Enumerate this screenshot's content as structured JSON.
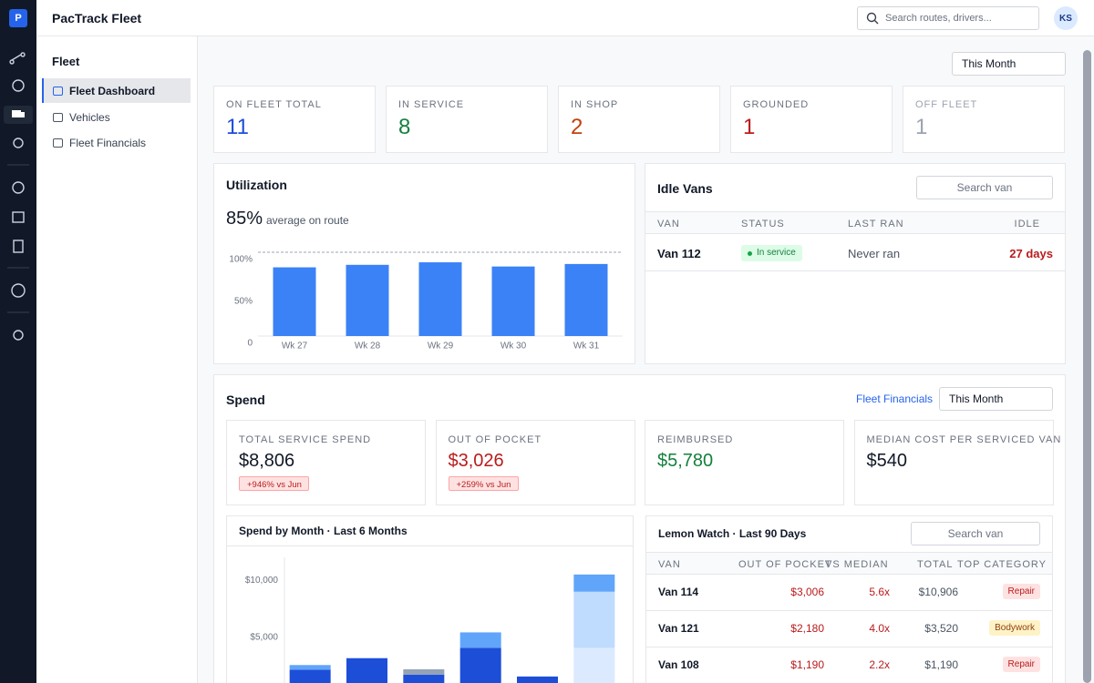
{
  "app": {
    "logo": "P",
    "title": "PacTrack Fleet",
    "search_placeholder": "Search routes, drivers...",
    "avatar": "KS"
  },
  "sidebar": {
    "section": "Fleet",
    "items": [
      "Fleet Dashboard",
      "Vehicles",
      "Fleet Financials"
    ]
  },
  "period": "This Month",
  "stats": [
    {
      "label": "ON FLEET TOTAL",
      "value": 11,
      "color": "#1d4ed8"
    },
    {
      "label": "IN SERVICE",
      "value": 8,
      "color": "#15803d"
    },
    {
      "label": "IN SHOP",
      "value": 2,
      "color": "#c2410c"
    },
    {
      "label": "GROUNDED",
      "value": 1,
      "color": "#b91c1c"
    },
    {
      "label": "OFF FLEET",
      "value": 1,
      "color": "#9ca3af"
    }
  ],
  "utilization": {
    "title": "Utilization",
    "average": "85%",
    "average_note": "average on route",
    "chart_data": {
      "type": "bar",
      "categories": [
        "Wk 27",
        "Wk 28",
        "Wk 29",
        "Wk 30",
        "Wk 31"
      ],
      "values": [
        82,
        85,
        88,
        83,
        86
      ],
      "color": "#3b82f6",
      "ylim": [
        0,
        100
      ],
      "yticks": [
        0,
        {
          "value": 50,
          "label": "50%"
        },
        {
          "value": 100,
          "label": "100%"
        }
      ]
    }
  },
  "idle_vans": {
    "title": "Idle Vans",
    "search_placeholder": "Search van",
    "columns": [
      "VAN",
      "STATUS",
      "LAST RAN",
      "IDLE"
    ],
    "rows": [
      {
        "van": "Van 112",
        "status": "In service",
        "last_ran": "Never ran",
        "idle": "27 days"
      }
    ]
  },
  "spend": {
    "title": "Spend",
    "link": "Fleet Financials",
    "period": "This Month",
    "cards": [
      {
        "label": "TOTAL SERVICE SPEND",
        "value": "$8,806",
        "change": "+946% vs Jun",
        "color": "#111827"
      },
      {
        "label": "OUT OF POCKET",
        "value": "$3,026",
        "change": "+259% vs Jun",
        "color": "#b91c1c"
      },
      {
        "label": "REIMBURSED",
        "value": "$5,780",
        "color": "#15803d"
      },
      {
        "label": "MEDIAN COST PER SERVICED VAN",
        "value": "$540",
        "color": "#111827"
      }
    ],
    "chart_data": {
      "type": "stacked_bar",
      "title": "Spend by Month · Last 6 Months",
      "categories": [
        null,
        null,
        null,
        null,
        null,
        null
      ],
      "series": [
        {
          "color": "#1d4ed8",
          "values": [
            2200,
            3200,
            1750,
            4100,
            1600,
            null
          ]
        },
        {
          "color": "#dbeafe",
          "values": [
            null,
            null,
            null,
            null,
            null,
            4100
          ]
        },
        {
          "color": "#94a3b8",
          "values": [
            null,
            null,
            480,
            null,
            null,
            null
          ]
        },
        {
          "color": "#bfdbfe",
          "values": [
            null,
            null,
            null,
            null,
            null,
            4900
          ]
        },
        {
          "color": "#60a5fa",
          "values": [
            400,
            null,
            null,
            1350,
            null,
            1500
          ]
        }
      ],
      "ylim": [
        0,
        12000
      ],
      "yticks": [
        {
          "value": 5000,
          "label": "$5,000"
        },
        {
          "value": 10000,
          "label": "$10,000"
        }
      ]
    }
  },
  "lemon_watch": {
    "title": "Lemon Watch · Last 90 Days",
    "search_placeholder": "Search van",
    "columns": [
      "VAN",
      "OUT OF POCKET",
      "VS MEDIAN",
      "TOTAL",
      "TOP CATEGORY"
    ],
    "rows": [
      {
        "van": "Van 114",
        "out_of_pocket": "$3,006",
        "vs_median": "5.6x",
        "total": "$10,906",
        "top_category": "Repair",
        "category_bg": "#fee2e2",
        "category_color": "#b91c1c"
      },
      {
        "van": "Van 121",
        "out_of_pocket": "$2,180",
        "vs_median": "4.0x",
        "total": "$3,520",
        "top_category": "Bodywork",
        "category_bg": "#fef3c7",
        "category_color": "#92400e"
      },
      {
        "van": "Van 108",
        "out_of_pocket": "$1,190",
        "vs_median": "2.2x",
        "total": "$1,190",
        "top_category": "Repair",
        "category_bg": "#fee2e2",
        "category_color": "#b91c1c"
      }
    ]
  }
}
